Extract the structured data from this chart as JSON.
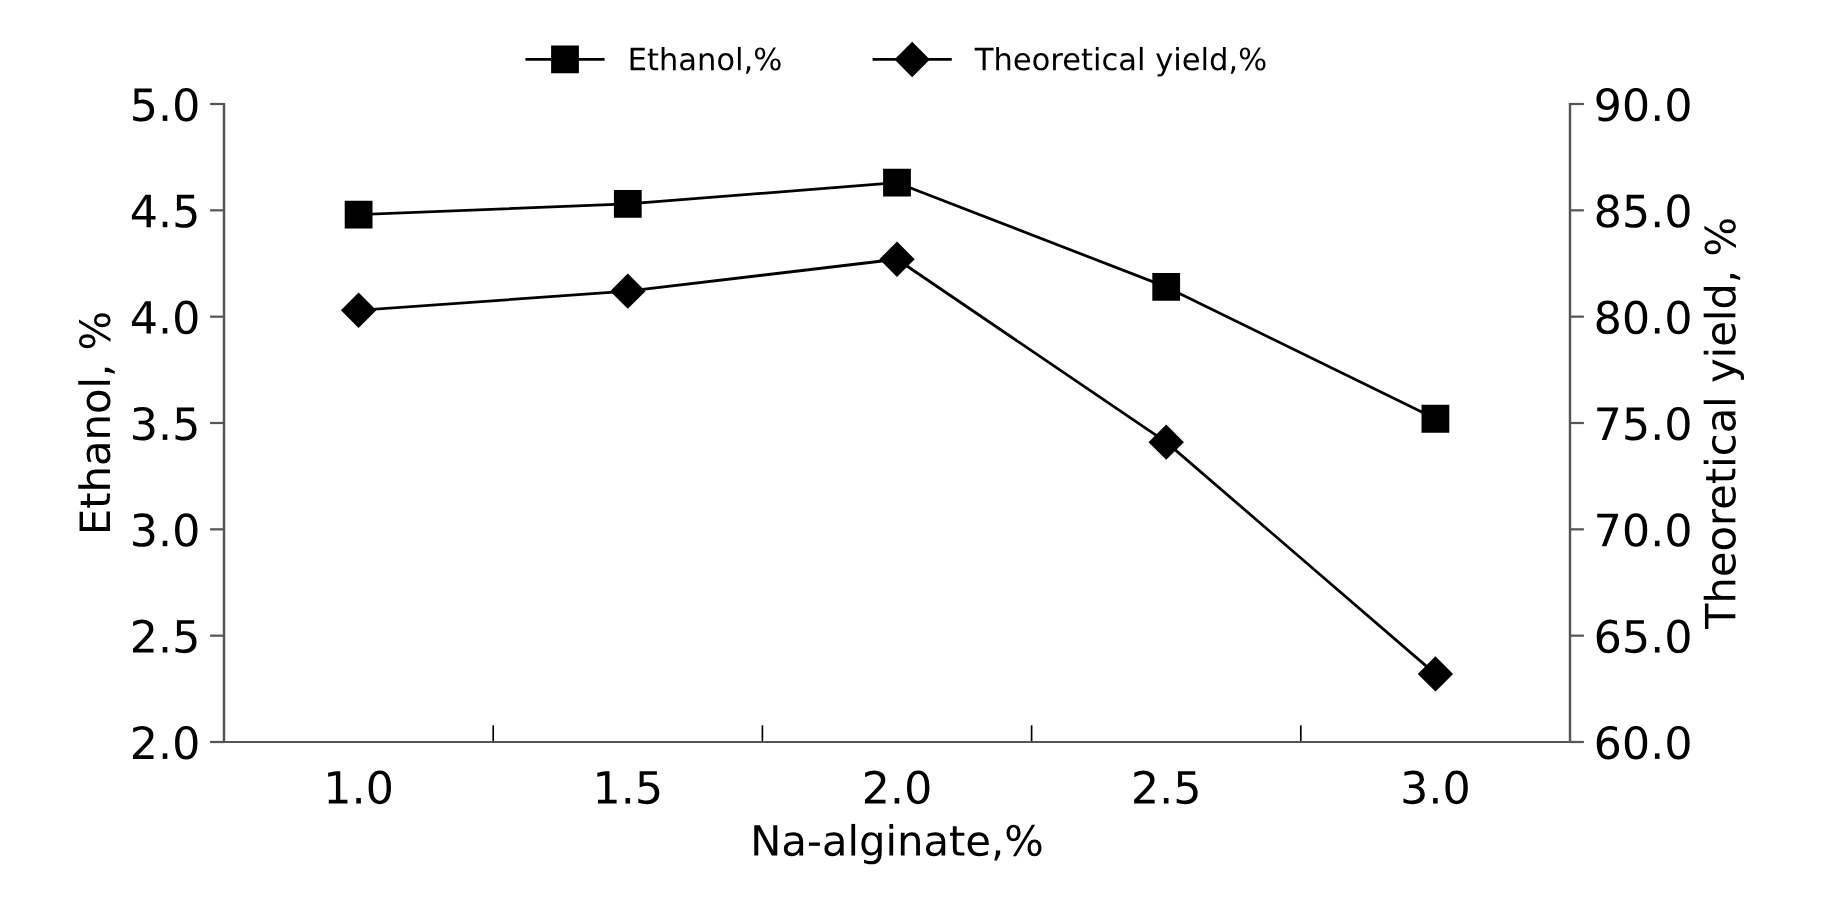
{
  "chart_data": {
    "type": "line",
    "xlabel": "Na-alginate,%",
    "ylabel": "Ethanol, %",
    "y2label": "Theoretical yield, %",
    "categories": [
      "1.0",
      "1.5",
      "2.0",
      "2.5",
      "3.0"
    ],
    "series": [
      {
        "name": "Ethanol,%",
        "color": "#000000",
        "marker": "square",
        "values": [
          4.48,
          4.53,
          4.63,
          4.14,
          3.52
        ]
      },
      {
        "name": "Theoretical yield,%",
        "color": "#000000",
        "marker": "diamond",
        "axis": "y2",
        "values": [
          80.3,
          81.2,
          82.7,
          74.1,
          63.2
        ]
      }
    ],
    "ylim": [
      2.0,
      5.0
    ],
    "yticks": [
      {
        "value": 2.0,
        "label": "2.0"
      },
      {
        "value": 2.5,
        "label": "2.5"
      },
      {
        "value": 3.0,
        "label": "3.0"
      },
      {
        "value": 3.5,
        "label": "3.5"
      },
      {
        "value": 4.0,
        "label": "4.0"
      },
      {
        "value": 4.5,
        "label": "4.5"
      },
      {
        "value": 5.0,
        "label": "5.0"
      }
    ],
    "y2lim": [
      60.0,
      90.0
    ],
    "y2ticks": [
      {
        "value": 60,
        "label": "60.0"
      },
      {
        "value": 65,
        "label": "65.0"
      },
      {
        "value": 70,
        "label": "70.0"
      },
      {
        "value": 75,
        "label": "75.0"
      },
      {
        "value": 80,
        "label": "80.0"
      },
      {
        "value": 85,
        "label": "85.0"
      },
      {
        "value": 90,
        "label": "90.0"
      }
    ],
    "grid": false,
    "legend": "top",
    "line_style": "solid"
  }
}
